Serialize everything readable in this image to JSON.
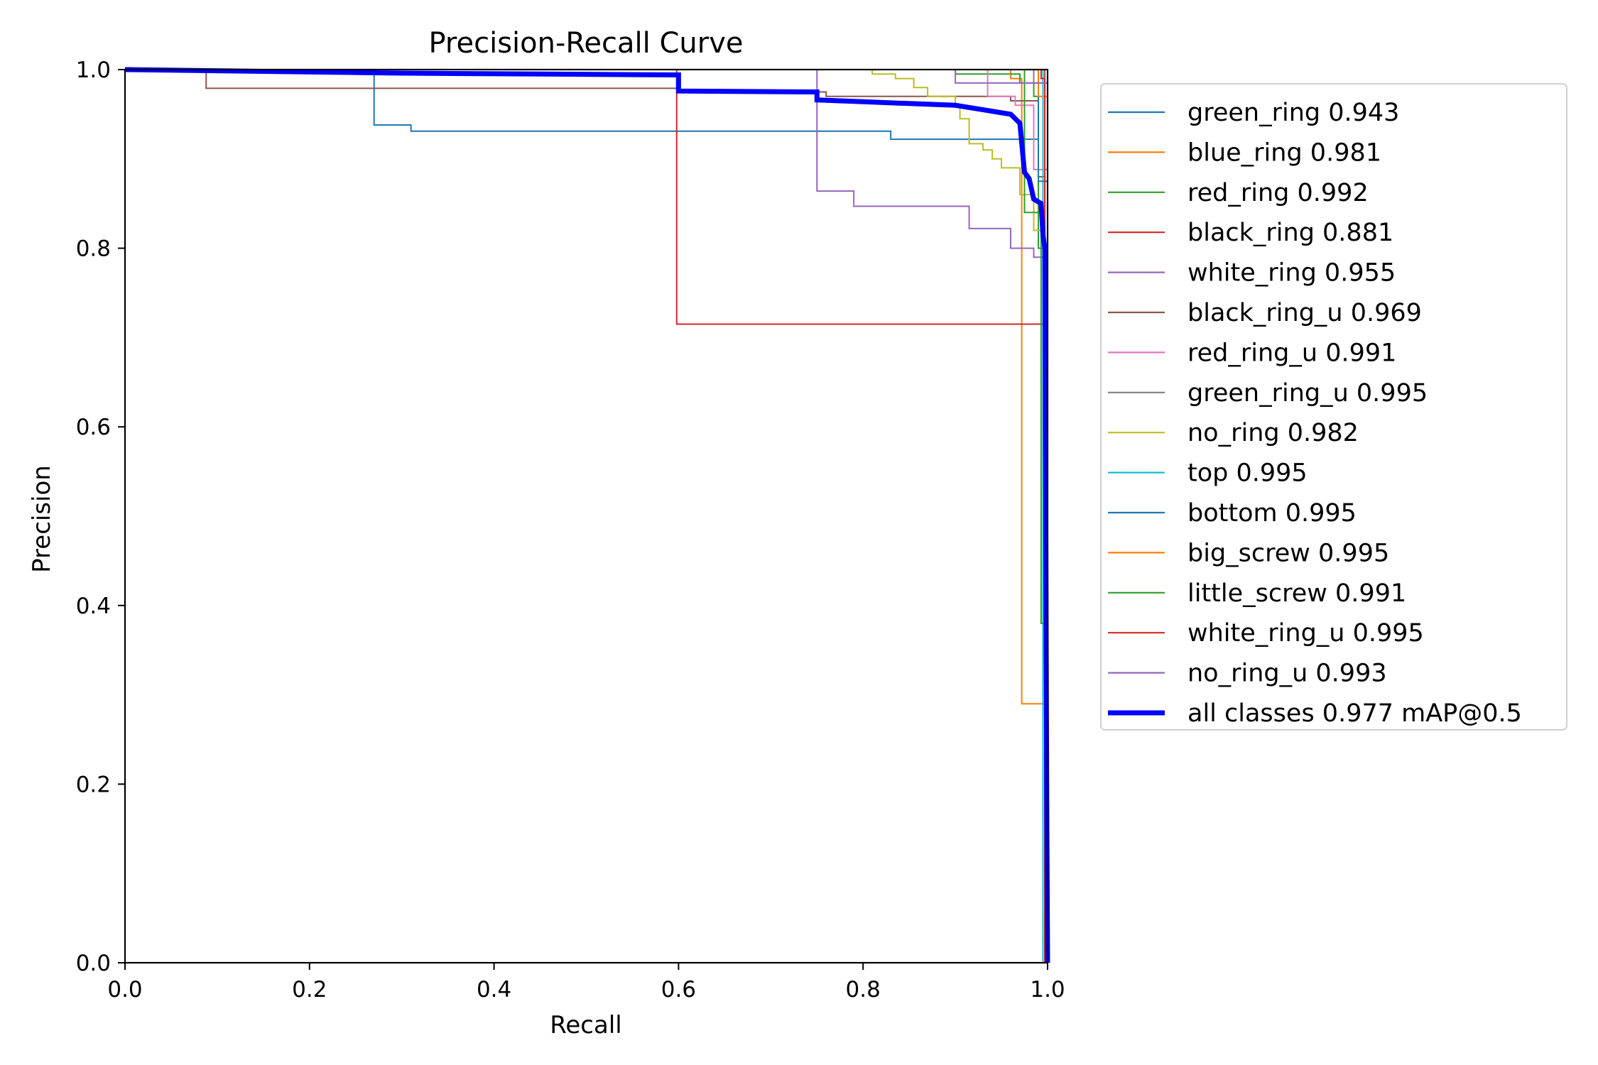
{
  "chart_data": {
    "type": "line",
    "title": "Precision-Recall Curve",
    "xlabel": "Recall",
    "ylabel": "Precision",
    "xlim": [
      0,
      1
    ],
    "ylim": [
      0,
      1
    ],
    "xticks": [
      "0.0",
      "0.2",
      "0.4",
      "0.6",
      "0.8",
      "1.0"
    ],
    "yticks": [
      "0.0",
      "0.2",
      "0.4",
      "0.6",
      "0.8",
      "1.0"
    ],
    "grid": false,
    "legend_position": "outside-right-top",
    "series": [
      {
        "name": "green_ring 0.943",
        "color": "#1f77b4",
        "width": 2,
        "points": [
          [
            0,
            1
          ],
          [
            0.27,
            1
          ],
          [
            0.27,
            0.938
          ],
          [
            0.31,
            0.938
          ],
          [
            0.31,
            0.931
          ],
          [
            0.83,
            0.931
          ],
          [
            0.83,
            0.922
          ],
          [
            0.99,
            0.922
          ],
          [
            0.99,
            0.88
          ],
          [
            0.997,
            0.88
          ],
          [
            0.997,
            0
          ]
        ]
      },
      {
        "name": "blue_ring 0.981",
        "color": "#ff7f0e",
        "width": 2,
        "points": [
          [
            0,
            1
          ],
          [
            0.96,
            1
          ],
          [
            0.96,
            0.99
          ],
          [
            0.972,
            0.99
          ],
          [
            0.972,
            0.29
          ],
          [
            0.997,
            0.29
          ],
          [
            0.997,
            0
          ]
        ]
      },
      {
        "name": "red_ring 0.992",
        "color": "#2ca02c",
        "width": 2,
        "points": [
          [
            0,
            1
          ],
          [
            0.9,
            1
          ],
          [
            0.9,
            0.995
          ],
          [
            0.97,
            0.995
          ],
          [
            0.97,
            0.985
          ],
          [
            0.985,
            0.985
          ],
          [
            0.985,
            0.97
          ],
          [
            0.99,
            0.97
          ],
          [
            0.99,
            0.8
          ],
          [
            0.997,
            0.8
          ],
          [
            0.997,
            0
          ]
        ]
      },
      {
        "name": "black_ring 0.881",
        "color": "#d62728",
        "width": 2,
        "points": [
          [
            0,
            1
          ],
          [
            0.598,
            1
          ],
          [
            0.598,
            0.715
          ],
          [
            0.997,
            0.715
          ],
          [
            0.997,
            0
          ]
        ]
      },
      {
        "name": "white_ring 0.955",
        "color": "#9467bd",
        "width": 2,
        "points": [
          [
            0,
            1
          ],
          [
            0.75,
            1
          ],
          [
            0.75,
            0.864
          ],
          [
            0.79,
            0.864
          ],
          [
            0.79,
            0.847
          ],
          [
            0.915,
            0.847
          ],
          [
            0.915,
            0.822
          ],
          [
            0.96,
            0.822
          ],
          [
            0.96,
            0.8
          ],
          [
            0.985,
            0.8
          ],
          [
            0.985,
            0.79
          ],
          [
            0.997,
            0.79
          ],
          [
            0.997,
            0
          ]
        ]
      },
      {
        "name": "black_ring_u 0.969",
        "color": "#8c564b",
        "width": 2,
        "points": [
          [
            0,
            1
          ],
          [
            0.088,
            1
          ],
          [
            0.088,
            0.979
          ],
          [
            0.6,
            0.979
          ],
          [
            0.6,
            0.975
          ],
          [
            0.76,
            0.975
          ],
          [
            0.76,
            0.97
          ],
          [
            0.96,
            0.97
          ],
          [
            0.96,
            0.965
          ],
          [
            0.99,
            0.965
          ],
          [
            0.99,
            0.88
          ],
          [
            0.997,
            0.88
          ],
          [
            0.997,
            1
          ],
          [
            1,
            1
          ]
        ]
      },
      {
        "name": "red_ring_u 0.991",
        "color": "#e377c2",
        "width": 2,
        "points": [
          [
            0,
            1
          ],
          [
            0.935,
            1
          ],
          [
            0.935,
            0.97
          ],
          [
            0.965,
            0.97
          ],
          [
            0.965,
            0.96
          ],
          [
            0.985,
            0.96
          ],
          [
            0.985,
            0.888
          ],
          [
            1,
            0.888
          ]
        ]
      },
      {
        "name": "green_ring_u 0.995",
        "color": "#7f7f7f",
        "width": 2,
        "points": [
          [
            0,
            1
          ],
          [
            0.985,
            1
          ],
          [
            0.985,
            0.985
          ],
          [
            0.995,
            0.985
          ],
          [
            0.995,
            0
          ]
        ]
      },
      {
        "name": "no_ring 0.982",
        "color": "#bcbd22",
        "width": 2,
        "points": [
          [
            0,
            1
          ],
          [
            0.81,
            1
          ],
          [
            0.81,
            0.995
          ],
          [
            0.835,
            0.995
          ],
          [
            0.835,
            0.99
          ],
          [
            0.855,
            0.99
          ],
          [
            0.855,
            0.98
          ],
          [
            0.87,
            0.98
          ],
          [
            0.87,
            0.97
          ],
          [
            0.9,
            0.97
          ],
          [
            0.9,
            0.96
          ],
          [
            0.905,
            0.96
          ],
          [
            0.905,
            0.945
          ],
          [
            0.915,
            0.945
          ],
          [
            0.915,
            0.917
          ],
          [
            0.93,
            0.917
          ],
          [
            0.93,
            0.91
          ],
          [
            0.94,
            0.91
          ],
          [
            0.94,
            0.9
          ],
          [
            0.95,
            0.9
          ],
          [
            0.95,
            0.89
          ],
          [
            0.97,
            0.89
          ],
          [
            0.97,
            0.86
          ],
          [
            0.985,
            0.86
          ],
          [
            0.985,
            0.82
          ],
          [
            0.997,
            0.82
          ],
          [
            0.997,
            0
          ]
        ]
      },
      {
        "name": "top 0.995",
        "color": "#17becf",
        "width": 2,
        "points": [
          [
            0,
            1
          ],
          [
            0.995,
            1
          ],
          [
            0.995,
            0
          ]
        ]
      },
      {
        "name": "bottom 0.995",
        "color": "#1f77b4",
        "width": 2,
        "points": [
          [
            0,
            1
          ],
          [
            0.99,
            1
          ],
          [
            0.99,
            0.875
          ],
          [
            1,
            0.875
          ]
        ]
      },
      {
        "name": "big_screw 0.995",
        "color": "#ff7f0e",
        "width": 2,
        "points": [
          [
            0,
            1
          ],
          [
            0.99,
            1
          ],
          [
            0.99,
            0.97
          ],
          [
            1,
            0.97
          ]
        ]
      },
      {
        "name": "little_screw 0.991",
        "color": "#2ca02c",
        "width": 2,
        "points": [
          [
            0,
            1
          ],
          [
            0.975,
            1
          ],
          [
            0.975,
            0.84
          ],
          [
            0.993,
            0.84
          ],
          [
            0.993,
            0.38
          ],
          [
            0.997,
            0.38
          ],
          [
            0.997,
            0
          ]
        ]
      },
      {
        "name": "white_ring_u 0.995",
        "color": "#d62728",
        "width": 2,
        "points": [
          [
            0,
            1
          ],
          [
            0.993,
            1
          ],
          [
            0.993,
            0.99
          ],
          [
            0.997,
            0.99
          ],
          [
            0.997,
            0
          ]
        ]
      },
      {
        "name": "no_ring_u 0.993",
        "color": "#9467bd",
        "width": 2,
        "points": [
          [
            0,
            1
          ],
          [
            0.9,
            1
          ],
          [
            0.9,
            0.985
          ],
          [
            1,
            0.985
          ]
        ]
      },
      {
        "name": "all classes 0.977 mAP@0.5",
        "color": "#0000ff",
        "width": 7,
        "points": [
          [
            0,
            1
          ],
          [
            0.3,
            0.996
          ],
          [
            0.6,
            0.994
          ],
          [
            0.6,
            0.976
          ],
          [
            0.75,
            0.975
          ],
          [
            0.75,
            0.966
          ],
          [
            0.8,
            0.964
          ],
          [
            0.85,
            0.962
          ],
          [
            0.9,
            0.96
          ],
          [
            0.93,
            0.955
          ],
          [
            0.96,
            0.95
          ],
          [
            0.97,
            0.94
          ],
          [
            0.975,
            0.885
          ],
          [
            0.98,
            0.878
          ],
          [
            0.985,
            0.855
          ],
          [
            0.993,
            0.85
          ],
          [
            0.995,
            0.815
          ],
          [
            0.997,
            0.8
          ],
          [
            0.998,
            0.5
          ],
          [
            0.999,
            0.2
          ],
          [
            1,
            0
          ]
        ]
      }
    ]
  }
}
